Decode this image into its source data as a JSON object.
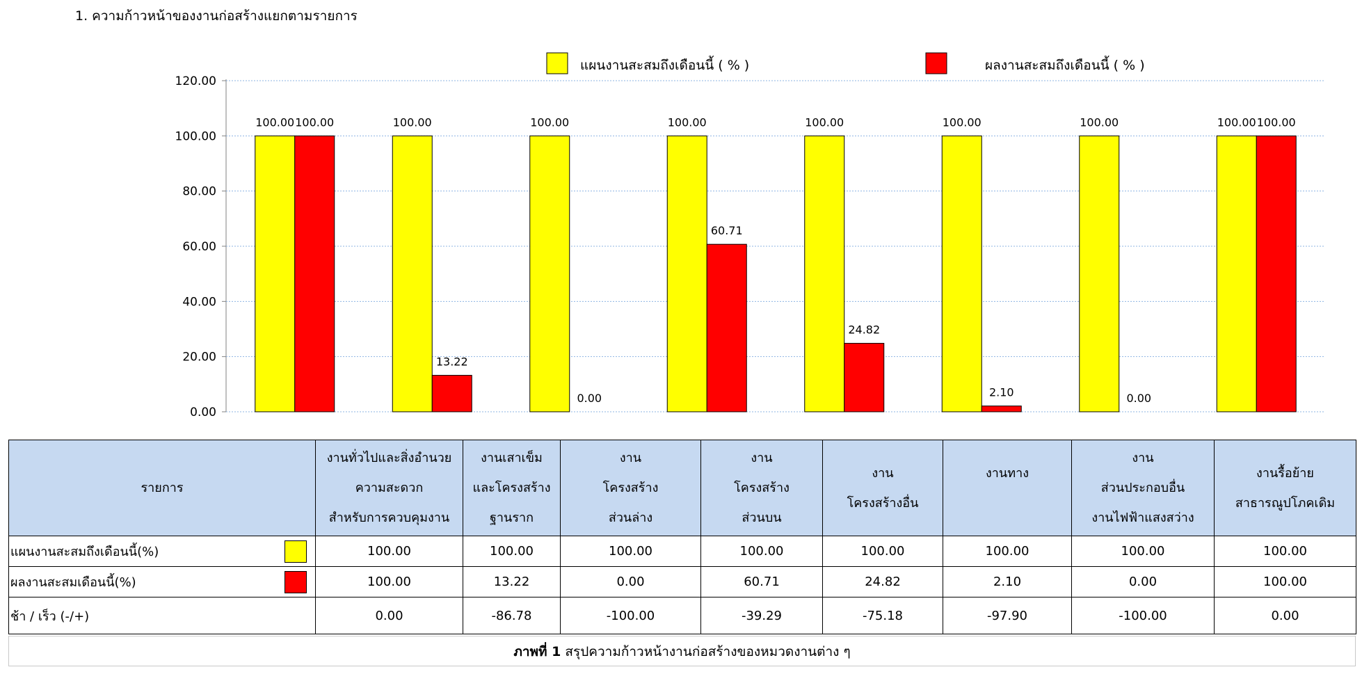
{
  "heading": "1. ความก้าวหน้าของงานก่อสร้างแยกตามรายการ",
  "colors": {
    "plan": "#ffff00",
    "actual": "#ff0000",
    "grid": "#8db3e2",
    "header_bg": "#c6d9f1"
  },
  "chart_data": {
    "type": "bar",
    "categories": [
      "งานทั่วไปและสิ่งอำนวยความสะดวกสำหรับการควบคุมงาน",
      "งานเสาเข็มและโครงสร้างฐานราก",
      "งานโครงสร้างส่วนล่าง",
      "งานโครงสร้างส่วนบน",
      "งานโครงสร้างอื่น",
      "งานทาง",
      "งานส่วนประกอบอื่นงานไฟฟ้าแสงสว่าง",
      "งานรื้อย้ายสาธารณูปโภคเดิม"
    ],
    "series": [
      {
        "name": "แผนงานสะสมถึงเดือนนี้ ( % )",
        "values": [
          100,
          100,
          100,
          100,
          100,
          100,
          100,
          100
        ]
      },
      {
        "name": "ผลงานสะสมถึงเดือนนี้ ( % )",
        "values": [
          100,
          13.22,
          0,
          60.71,
          24.82,
          2.1,
          0,
          100
        ]
      }
    ],
    "value_labels": [
      [
        "100.00",
        "100.00",
        "100.00",
        "100.00",
        "100.00",
        "100.00",
        "100.00",
        "100.00"
      ],
      [
        "100.00",
        "13.22",
        "0.00",
        "60.71",
        "24.82",
        "2.10",
        "0.00",
        "100.00"
      ]
    ],
    "ylim": [
      0,
      120
    ],
    "yticks": [
      "0.00",
      "20.00",
      "40.00",
      "60.00",
      "80.00",
      "100.00",
      "120.00"
    ],
    "grid": true,
    "legend_position": "top"
  },
  "table": {
    "header_label": "รายการ",
    "columns": [
      "งานทั่วไปและสิ่งอำนวย\nความสะดวก\nสำหรับการควบคุมงาน",
      "งานเสาเข็ม\nและโครงสร้าง\nฐานราก",
      "งาน\nโครงสร้าง\nส่วนล่าง",
      "งาน\nโครงสร้าง\nส่วนบน",
      "งาน\nโครงสร้างอื่น\n ",
      "งานทาง\n\n ",
      "งาน\nส่วนประกอบอื่น\nงานไฟฟ้าแสงสว่าง",
      "งานรื้อย้าย\nสาธารณูปโภคเดิม\n "
    ],
    "rows": [
      {
        "label": "แผนงานสะสมถึงเดือนนี้(%)",
        "swatch": "#ffff00",
        "values": [
          "100.00",
          "100.00",
          "100.00",
          "100.00",
          "100.00",
          "100.00",
          "100.00",
          "100.00"
        ]
      },
      {
        "label": "ผลงานสะสมเดือนนี้(%)",
        "swatch": "#ff0000",
        "values": [
          "100.00",
          "13.22",
          "0.00",
          "60.71",
          "24.82",
          "2.10",
          "0.00",
          "100.00"
        ]
      },
      {
        "label": "ช้า / เร็ว  (-/+)",
        "swatch": null,
        "values": [
          "0.00",
          "-86.78",
          "-100.00",
          "-39.29",
          "-75.18",
          "-97.90",
          "-100.00",
          "0.00"
        ]
      }
    ]
  },
  "caption": {
    "bold": "ภาพที่ 1",
    "text": " สรุปความก้าวหน้างานก่อสร้างของหมวดงานต่าง ๆ"
  }
}
